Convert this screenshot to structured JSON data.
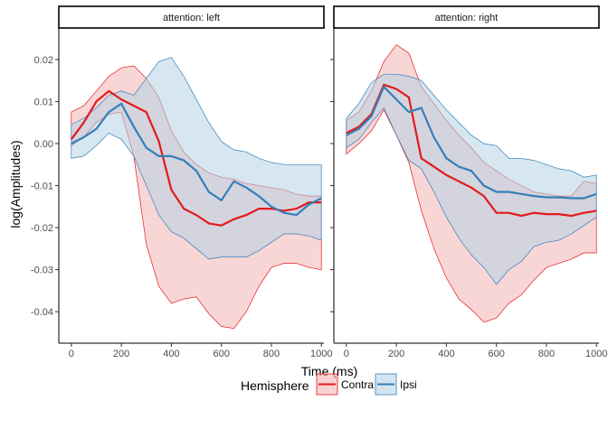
{
  "chart_data": {
    "type": "line",
    "style": "line with shaded ribbon (confidence band), faceted",
    "xlabel": "Time (ms)",
    "ylabel": "log(Amplitudes)",
    "xlim": [
      -50,
      1010
    ],
    "ylim": [
      -0.0475,
      0.0275
    ],
    "x_ticks": [
      0,
      200,
      400,
      600,
      800,
      1000
    ],
    "y_ticks": [
      -0.04,
      -0.03,
      -0.02,
      -0.01,
      0.0,
      0.01,
      0.02
    ],
    "y_tick_labels": [
      "-0.04",
      "-0.03",
      "-0.02",
      "-0.01",
      "0.00",
      "0.01",
      "0.02"
    ],
    "grid": false,
    "legend": {
      "title": "Hemisphere",
      "position": "bottom",
      "entries": [
        {
          "name": "Contra",
          "line_color": "#E41A1C",
          "fill_color": "#F4B4B5"
        },
        {
          "name": "Ipsi",
          "line_color": "#377EB8",
          "fill_color": "#B5D3E6"
        }
      ]
    },
    "panels": [
      {
        "strip_label": "attention: left",
        "series": [
          {
            "name": "Contra",
            "x": [
              0,
              50,
              100,
              150,
              200,
              250,
              300,
              350,
              400,
              450,
              500,
              550,
              600,
              650,
              700,
              750,
              800,
              850,
              900,
              950,
              1000
            ],
            "y": [
              0.001,
              0.005,
              0.01,
              0.0125,
              0.0105,
              0.009,
              0.0075,
              0.0005,
              -0.011,
              -0.0155,
              -0.017,
              -0.019,
              -0.0195,
              -0.018,
              -0.017,
              -0.0155,
              -0.0155,
              -0.016,
              -0.0155,
              -0.014,
              -0.014
            ],
            "upper": [
              0.0075,
              0.009,
              0.0125,
              0.016,
              0.018,
              0.0185,
              0.0155,
              0.011,
              0.003,
              -0.002,
              -0.005,
              -0.007,
              -0.008,
              -0.0085,
              -0.0095,
              -0.01,
              -0.0105,
              -0.011,
              -0.012,
              -0.0125,
              -0.0125
            ],
            "lower": [
              -0.0005,
              0.0015,
              0.005,
              0.007,
              0.0075,
              -0.003,
              -0.024,
              -0.034,
              -0.038,
              -0.037,
              -0.0365,
              -0.0405,
              -0.0435,
              -0.044,
              -0.04,
              -0.034,
              -0.0295,
              -0.0285,
              -0.0285,
              -0.0295,
              -0.03
            ]
          },
          {
            "name": "Ipsi",
            "x": [
              0,
              50,
              100,
              150,
              200,
              250,
              300,
              350,
              400,
              450,
              500,
              550,
              600,
              650,
              700,
              750,
              800,
              850,
              900,
              950,
              1000
            ],
            "y": [
              0.0,
              0.0015,
              0.0035,
              0.0075,
              0.0095,
              0.004,
              -0.001,
              -0.003,
              -0.003,
              -0.004,
              -0.0065,
              -0.0115,
              -0.0135,
              -0.009,
              -0.0105,
              -0.0125,
              -0.015,
              -0.0165,
              -0.017,
              -0.0145,
              -0.013
            ],
            "upper": [
              0.0045,
              0.006,
              0.0085,
              0.0115,
              0.0125,
              0.0115,
              0.0155,
              0.0195,
              0.0205,
              0.016,
              0.0105,
              0.005,
              0.0005,
              -0.0015,
              -0.002,
              -0.0035,
              -0.0045,
              -0.005,
              -0.005,
              -0.005,
              -0.005
            ],
            "lower": [
              -0.0035,
              -0.003,
              -0.0005,
              0.0025,
              0.001,
              -0.003,
              -0.01,
              -0.017,
              -0.021,
              -0.0225,
              -0.025,
              -0.0275,
              -0.027,
              -0.027,
              -0.027,
              -0.0255,
              -0.0235,
              -0.0215,
              -0.0215,
              -0.022,
              -0.023
            ]
          }
        ]
      },
      {
        "strip_label": "attention: right",
        "series": [
          {
            "name": "Contra",
            "x": [
              0,
              50,
              100,
              150,
              200,
              250,
              300,
              350,
              400,
              450,
              500,
              550,
              600,
              650,
              700,
              750,
              800,
              850,
              900,
              950,
              1000
            ],
            "y": [
              0.0025,
              0.004,
              0.007,
              0.014,
              0.013,
              0.011,
              -0.0035,
              -0.0055,
              -0.0075,
              -0.009,
              -0.0105,
              -0.0125,
              -0.0165,
              -0.0165,
              -0.0172,
              -0.0165,
              -0.0168,
              -0.0168,
              -0.0172,
              -0.0165,
              -0.016
            ],
            "upper": [
              0.0055,
              0.0075,
              0.0125,
              0.0195,
              0.0235,
              0.0215,
              0.0135,
              0.0095,
              0.0055,
              0.002,
              -0.001,
              -0.0045,
              -0.0065,
              -0.0085,
              -0.01,
              -0.0115,
              -0.012,
              -0.0125,
              -0.0125,
              -0.009,
              -0.0095
            ],
            "lower": [
              -0.0025,
              0.0,
              0.003,
              0.008,
              0.002,
              -0.0045,
              -0.016,
              -0.025,
              -0.032,
              -0.037,
              -0.0395,
              -0.0425,
              -0.0415,
              -0.038,
              -0.036,
              -0.0325,
              -0.0295,
              -0.0285,
              -0.0275,
              -0.026,
              -0.026
            ]
          },
          {
            "name": "Ipsi",
            "x": [
              0,
              50,
              100,
              150,
              200,
              250,
              300,
              350,
              400,
              450,
              500,
              550,
              600,
              650,
              700,
              750,
              800,
              850,
              900,
              950,
              1000
            ],
            "y": [
              0.002,
              0.0035,
              0.0065,
              0.0135,
              0.0105,
              0.0075,
              0.0085,
              0.0015,
              -0.0035,
              -0.0055,
              -0.0065,
              -0.01,
              -0.0115,
              -0.0115,
              -0.012,
              -0.0125,
              -0.0128,
              -0.0128,
              -0.013,
              -0.013,
              -0.012
            ],
            "upper": [
              0.006,
              0.0095,
              0.0145,
              0.0165,
              0.0165,
              0.016,
              0.015,
              0.0115,
              0.008,
              0.005,
              0.002,
              0.0,
              -0.0005,
              -0.0035,
              -0.0035,
              -0.004,
              -0.005,
              -0.006,
              -0.0065,
              -0.008,
              -0.0075
            ],
            "lower": [
              -0.001,
              0.001,
              0.005,
              0.0085,
              0.002,
              -0.004,
              -0.006,
              -0.0115,
              -0.0175,
              -0.0225,
              -0.0265,
              -0.0295,
              -0.0335,
              -0.03,
              -0.028,
              -0.0245,
              -0.0235,
              -0.023,
              -0.0215,
              -0.0195,
              -0.0175
            ]
          }
        ]
      }
    ]
  }
}
